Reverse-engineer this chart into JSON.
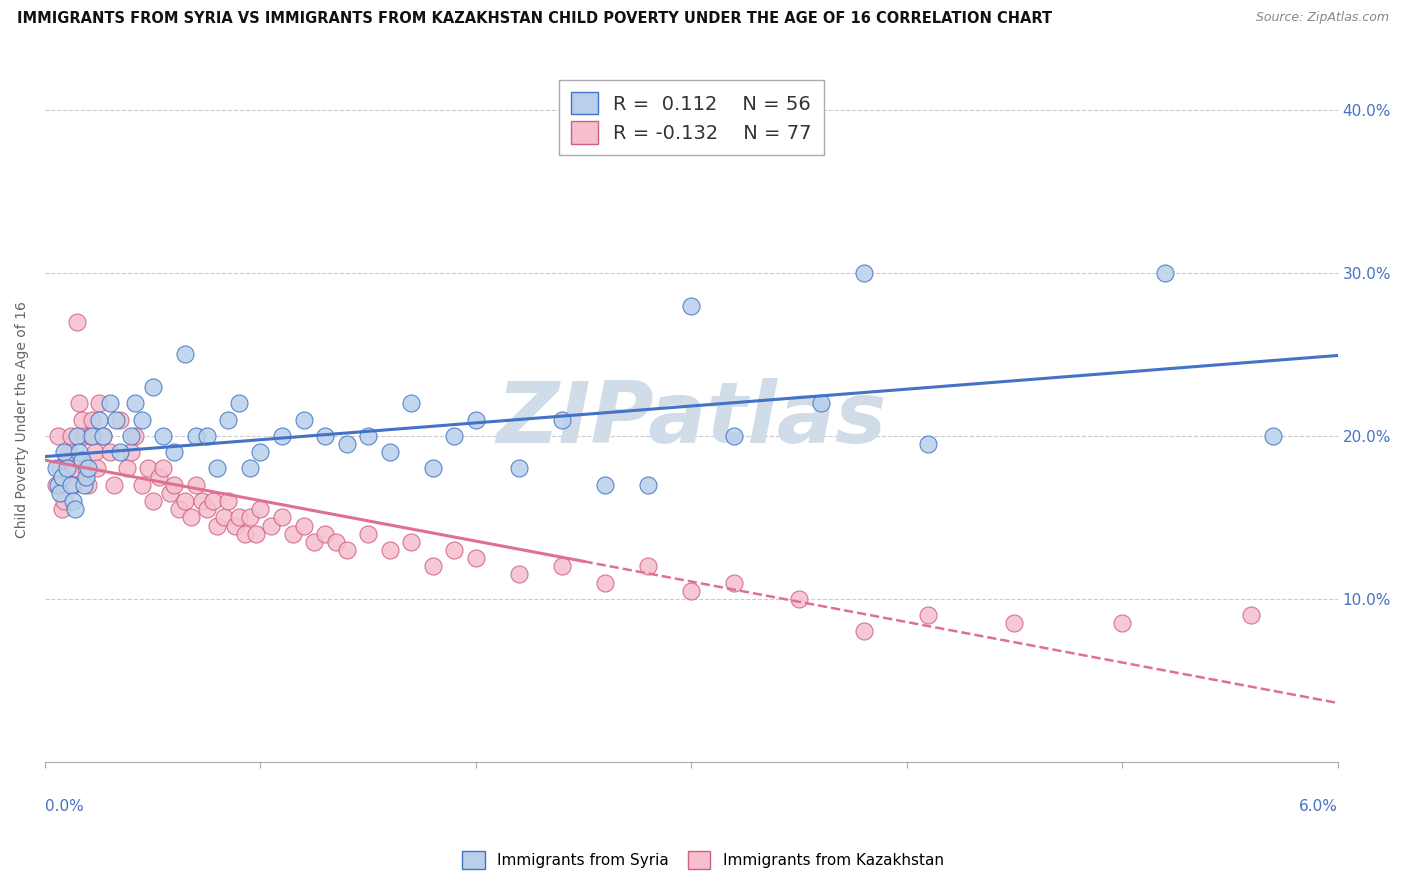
{
  "title": "IMMIGRANTS FROM SYRIA VS IMMIGRANTS FROM KAZAKHSTAN CHILD POVERTY UNDER THE AGE OF 16 CORRELATION CHART",
  "source": "Source: ZipAtlas.com",
  "ylabel": "Child Poverty Under the Age of 16",
  "xlim": [
    0.0,
    6.0
  ],
  "ylim": [
    0.0,
    42.0
  ],
  "legend_syria_R": "0.112",
  "legend_syria_N": "56",
  "legend_kaz_R": "-0.132",
  "legend_kaz_N": "77",
  "syria_face_color": "#b8d0ea",
  "kaz_face_color": "#f5bfce",
  "syria_edge_color": "#4472c4",
  "kaz_edge_color": "#d06080",
  "syria_line_color": "#4472c4",
  "kaz_line_color": "#e07090",
  "watermark_color": "#d0dce8",
  "background_color": "#ffffff",
  "grid_color": "#cccccc",
  "axis_label_color": "#4472c4",
  "title_color": "#111111",
  "source_color": "#888888",
  "syria_x": [
    0.05,
    0.06,
    0.07,
    0.08,
    0.09,
    0.1,
    0.12,
    0.13,
    0.14,
    0.15,
    0.16,
    0.17,
    0.18,
    0.19,
    0.2,
    0.22,
    0.25,
    0.27,
    0.3,
    0.33,
    0.35,
    0.4,
    0.42,
    0.45,
    0.5,
    0.55,
    0.6,
    0.65,
    0.7,
    0.75,
    0.8,
    0.85,
    0.9,
    0.95,
    1.0,
    1.1,
    1.2,
    1.3,
    1.4,
    1.5,
    1.6,
    1.7,
    1.8,
    1.9,
    2.0,
    2.2,
    2.4,
    2.6,
    2.8,
    3.0,
    3.2,
    3.6,
    3.8,
    4.1,
    5.2,
    5.7
  ],
  "syria_y": [
    18.0,
    17.0,
    16.5,
    17.5,
    19.0,
    18.0,
    17.0,
    16.0,
    15.5,
    20.0,
    19.0,
    18.5,
    17.0,
    17.5,
    18.0,
    20.0,
    21.0,
    20.0,
    22.0,
    21.0,
    19.0,
    20.0,
    22.0,
    21.0,
    23.0,
    20.0,
    19.0,
    25.0,
    20.0,
    20.0,
    18.0,
    21.0,
    22.0,
    18.0,
    19.0,
    20.0,
    21.0,
    20.0,
    19.5,
    20.0,
    19.0,
    22.0,
    18.0,
    20.0,
    21.0,
    18.0,
    21.0,
    17.0,
    17.0,
    28.0,
    20.0,
    22.0,
    30.0,
    19.5,
    30.0,
    20.0
  ],
  "kaz_x": [
    0.05,
    0.06,
    0.07,
    0.08,
    0.09,
    0.1,
    0.11,
    0.12,
    0.13,
    0.14,
    0.15,
    0.16,
    0.17,
    0.18,
    0.19,
    0.2,
    0.21,
    0.22,
    0.23,
    0.24,
    0.25,
    0.27,
    0.3,
    0.32,
    0.35,
    0.38,
    0.4,
    0.42,
    0.45,
    0.48,
    0.5,
    0.53,
    0.55,
    0.58,
    0.6,
    0.62,
    0.65,
    0.68,
    0.7,
    0.73,
    0.75,
    0.78,
    0.8,
    0.83,
    0.85,
    0.88,
    0.9,
    0.93,
    0.95,
    0.98,
    1.0,
    1.05,
    1.1,
    1.15,
    1.2,
    1.25,
    1.3,
    1.35,
    1.4,
    1.5,
    1.6,
    1.7,
    1.8,
    1.9,
    2.0,
    2.2,
    2.4,
    2.6,
    2.8,
    3.0,
    3.2,
    3.5,
    3.8,
    4.1,
    4.5,
    5.0,
    5.6
  ],
  "kaz_y": [
    17.0,
    20.0,
    18.0,
    15.5,
    16.0,
    18.5,
    19.0,
    20.0,
    17.0,
    18.0,
    27.0,
    22.0,
    21.0,
    20.0,
    18.0,
    17.0,
    20.0,
    21.0,
    19.0,
    18.0,
    22.0,
    20.0,
    19.0,
    17.0,
    21.0,
    18.0,
    19.0,
    20.0,
    17.0,
    18.0,
    16.0,
    17.5,
    18.0,
    16.5,
    17.0,
    15.5,
    16.0,
    15.0,
    17.0,
    16.0,
    15.5,
    16.0,
    14.5,
    15.0,
    16.0,
    14.5,
    15.0,
    14.0,
    15.0,
    14.0,
    15.5,
    14.5,
    15.0,
    14.0,
    14.5,
    13.5,
    14.0,
    13.5,
    13.0,
    14.0,
    13.0,
    13.5,
    12.0,
    13.0,
    12.5,
    11.5,
    12.0,
    11.0,
    12.0,
    10.5,
    11.0,
    10.0,
    8.0,
    9.0,
    8.5,
    8.5,
    9.0
  ]
}
